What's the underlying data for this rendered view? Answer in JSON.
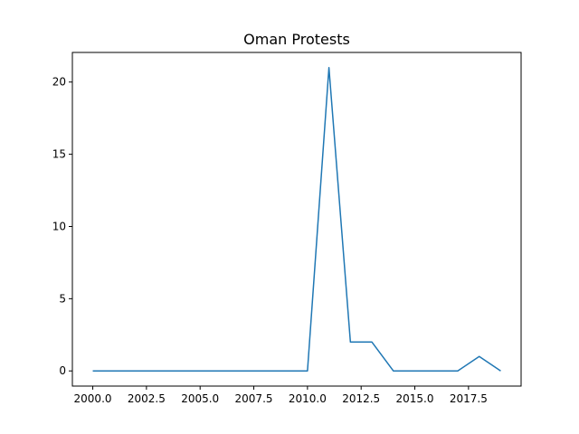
{
  "chart_data": {
    "type": "line",
    "title": "Oman Protests",
    "xlabel": "",
    "ylabel": "",
    "x": [
      2000,
      2001,
      2002,
      2003,
      2004,
      2005,
      2006,
      2007,
      2008,
      2009,
      2010,
      2011,
      2012,
      2013,
      2014,
      2015,
      2016,
      2017,
      2018,
      2019
    ],
    "series": [
      {
        "values": [
          0,
          0,
          0,
          0,
          0,
          0,
          0,
          0,
          0,
          0,
          0,
          21,
          2,
          2,
          0,
          0,
          0,
          0,
          1,
          0
        ]
      }
    ],
    "xlim": [
      1999.05,
      2019.95
    ],
    "ylim": [
      -1.05,
      22.05
    ],
    "xticks": [
      2000.0,
      2002.5,
      2005.0,
      2007.5,
      2010.0,
      2012.5,
      2015.0,
      2017.5
    ],
    "xtick_labels": [
      "2000.0",
      "2002.5",
      "2005.0",
      "2007.5",
      "2010.0",
      "2012.5",
      "2015.0",
      "2017.5"
    ],
    "yticks": [
      0,
      5,
      10,
      15,
      20
    ],
    "ytick_labels": [
      "0",
      "5",
      "10",
      "15",
      "20"
    ],
    "grid": false,
    "line_color": "#1f77b4"
  }
}
